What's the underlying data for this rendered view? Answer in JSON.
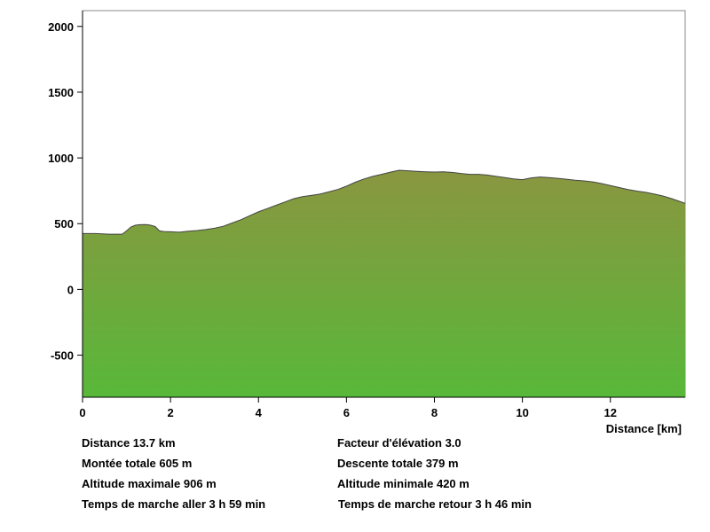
{
  "chart_data": {
    "type": "area",
    "title": "",
    "xlabel": "Distance [km]",
    "ylabel": "",
    "xlim": [
      0,
      13.7
    ],
    "ylim": [
      -820,
      2120
    ],
    "x_ticks": [
      0,
      2,
      4,
      6,
      8,
      10,
      12
    ],
    "y_ticks": [
      -500,
      0,
      500,
      1000,
      1500,
      2000
    ],
    "grid": false,
    "legend": "none",
    "fill_top_color": "#8a9640",
    "fill_bottom_color": "#58b83a",
    "series": [
      {
        "x": [
          0,
          0.3,
          0.6,
          0.9,
          1.0,
          1.1,
          1.2,
          1.3,
          1.45,
          1.55,
          1.65,
          1.75,
          1.85,
          2.0,
          2.2,
          2.4,
          2.6,
          2.8,
          3.0,
          3.2,
          3.4,
          3.6,
          3.8,
          4.0,
          4.2,
          4.4,
          4.6,
          4.8,
          5.0,
          5.2,
          5.4,
          5.6,
          5.8,
          6.0,
          6.2,
          6.4,
          6.6,
          6.8,
          7.0,
          7.2,
          7.4,
          7.6,
          7.8,
          8.0,
          8.2,
          8.4,
          8.6,
          8.8,
          9.0,
          9.2,
          9.4,
          9.6,
          9.8,
          10.0,
          10.2,
          10.4,
          10.6,
          10.8,
          11.0,
          11.2,
          11.4,
          11.6,
          11.8,
          12.0,
          12.2,
          12.4,
          12.6,
          12.8,
          13.0,
          13.2,
          13.4,
          13.7
        ],
        "y": [
          425,
          425,
          420,
          420,
          445,
          475,
          488,
          492,
          493,
          488,
          478,
          445,
          440,
          438,
          435,
          442,
          448,
          455,
          465,
          480,
          505,
          530,
          560,
          590,
          615,
          640,
          665,
          690,
          705,
          715,
          725,
          742,
          760,
          785,
          815,
          840,
          860,
          875,
          892,
          906,
          902,
          898,
          895,
          893,
          894,
          890,
          882,
          875,
          875,
          870,
          860,
          850,
          840,
          835,
          848,
          855,
          850,
          845,
          838,
          830,
          825,
          818,
          805,
          790,
          775,
          760,
          748,
          738,
          725,
          710,
          690,
          655
        ]
      }
    ]
  },
  "stats": {
    "distance": "Distance 13.7 km",
    "facteur": "Facteur d'élévation 3.0",
    "montee": "Montée totale  605 m",
    "descente": "Descente totale  379 m",
    "alt_max": "Altitude maximale  906 m",
    "alt_min": "Altitude minimale  420 m",
    "temps_aller": "Temps de marche aller  3 h 59 min",
    "temps_retour": "Temps de marche retour  3 h 46 min"
  }
}
